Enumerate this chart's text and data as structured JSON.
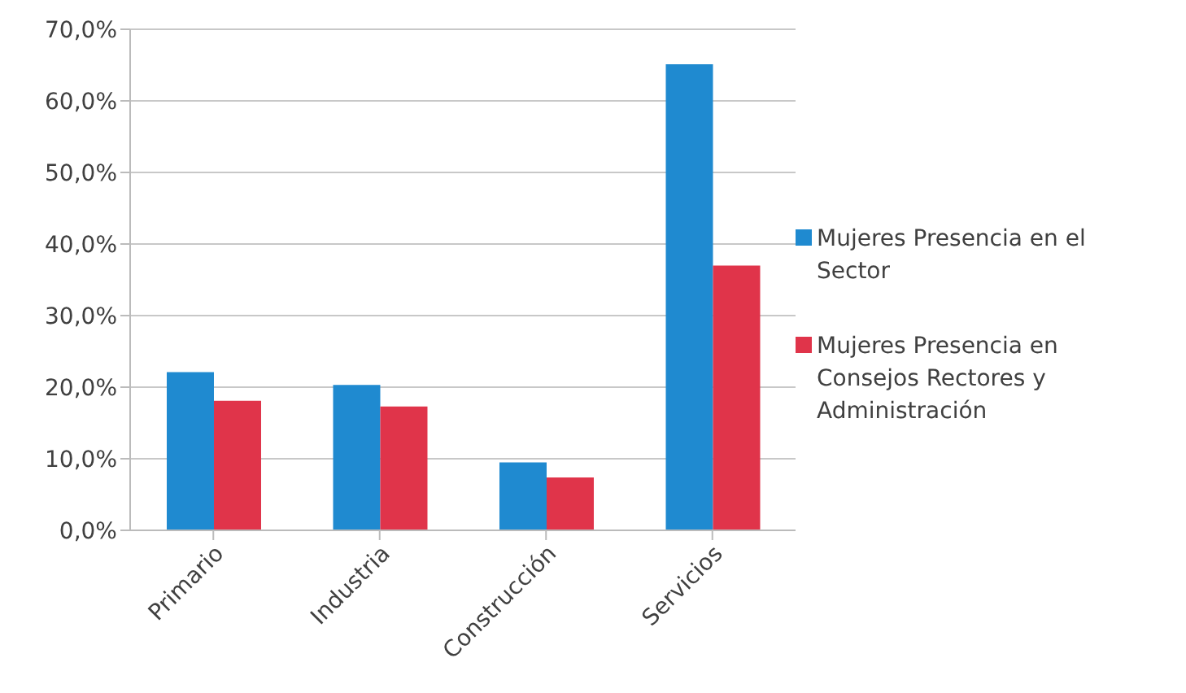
{
  "chart_data": {
    "type": "bar",
    "categories": [
      "Primario",
      "Industria",
      "Construcción",
      "Servicios"
    ],
    "series": [
      {
        "name": "Mujeres Presencia en el Sector",
        "color": "#1f8ad0",
        "values": [
          22.1,
          20.3,
          9.5,
          65.1
        ]
      },
      {
        "name": "Mujeres Presencia en Consejos Rectores y Administración",
        "color": "#e0344a",
        "values": [
          18.1,
          17.3,
          7.4,
          37.0
        ]
      }
    ],
    "ylim": [
      0,
      70
    ],
    "yticks": [
      {
        "value": 0,
        "label": "0,0%"
      },
      {
        "value": 10,
        "label": "10,0%"
      },
      {
        "value": 20,
        "label": "20,0%"
      },
      {
        "value": 30,
        "label": "30,0%"
      },
      {
        "value": 40,
        "label": "40,0%"
      },
      {
        "value": 50,
        "label": "50,0%"
      },
      {
        "value": 60,
        "label": "60,0%"
      },
      {
        "value": 70,
        "label": "70,0%"
      }
    ],
    "grid": "y",
    "legend": "right"
  }
}
